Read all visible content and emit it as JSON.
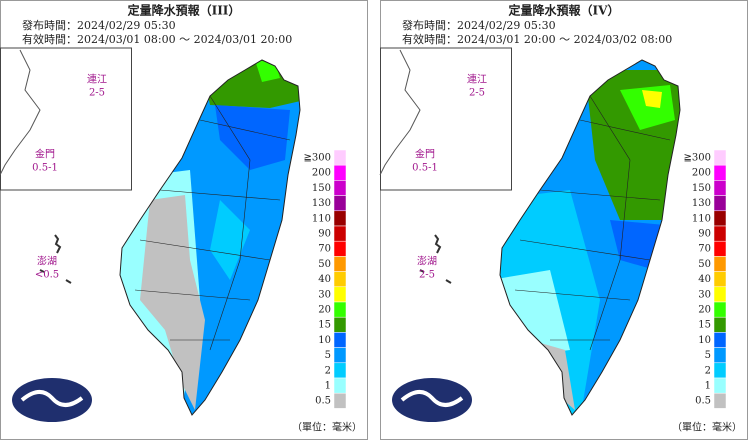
{
  "panels": [
    {
      "title": "定量降水預報（III）",
      "issued": "發布時間：2024/02/29 05:30",
      "valid": "有效時間：2024/03/01 08:00 ～ 2024/03/01 20:00",
      "islands": [
        {
          "name": "連江",
          "range": "2-5"
        },
        {
          "name": "金門",
          "range": "0.5-1"
        },
        {
          "name": "澎湖",
          "range": "<0.5"
        }
      ]
    },
    {
      "title": "定量降水預報（IV）",
      "issued": "發布時間：2024/02/29 05:30",
      "valid": "有效時間：2024/03/01 20:00 ～ 2024/03/02 08:00",
      "islands": [
        {
          "name": "連江",
          "range": "2-5"
        },
        {
          "name": "金門",
          "range": "0.5-1"
        },
        {
          "name": "澎湖",
          "range": "2-5"
        }
      ]
    }
  ],
  "legend": {
    "labels": [
      "≧300",
      "200",
      "150",
      "130",
      "110",
      "90",
      "70",
      "50",
      "40",
      "30",
      "20",
      "15",
      "10",
      "5",
      "2",
      "1",
      "0.5"
    ],
    "colors": [
      "#ffccff",
      "#ff00ff",
      "#cc00cc",
      "#990099",
      "#990000",
      "#cc0000",
      "#ff0000",
      "#ff9900",
      "#ffcc00",
      "#ffff00",
      "#33ff00",
      "#339900",
      "#0066ff",
      "#0099ff",
      "#00ccff",
      "#99ffff",
      "#c1c1c1"
    ],
    "unit": "（單位：毫米）"
  }
}
